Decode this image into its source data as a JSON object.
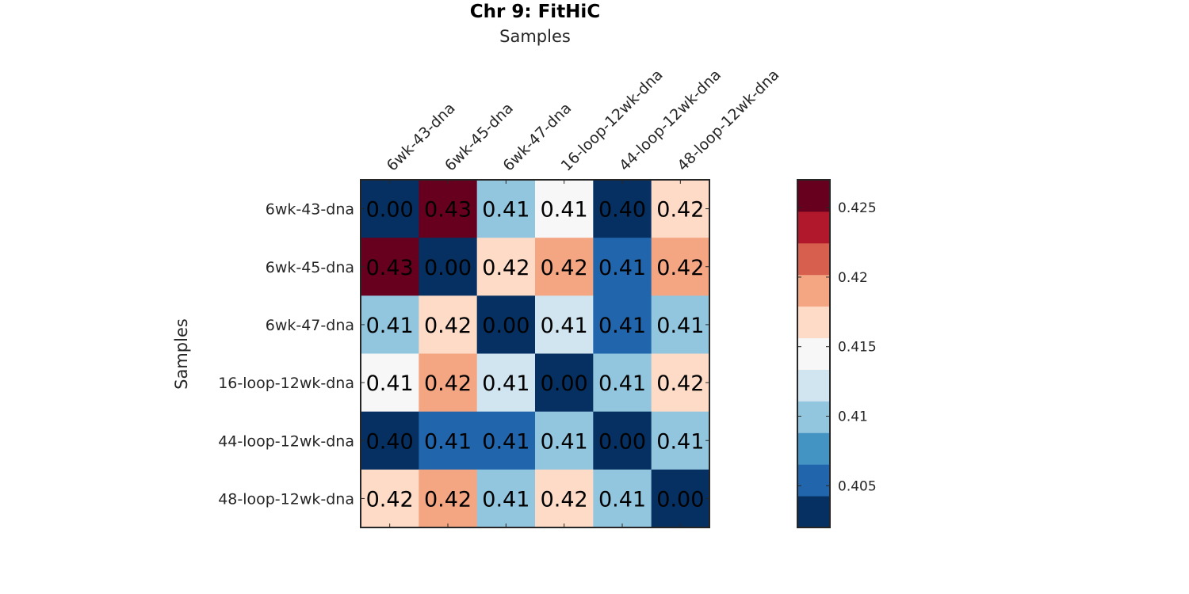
{
  "chart_data": {
    "type": "heatmap",
    "title": "Chr 9: FitHiC",
    "xlabel": "Samples",
    "ylabel": "Samples",
    "x_categories": [
      "6wk-43-dna",
      "6wk-45-dna",
      "6wk-47-dna",
      "16-loop-12wk-dna",
      "44-loop-12wk-dna",
      "48-loop-12wk-dna"
    ],
    "y_categories": [
      "6wk-43-dna",
      "6wk-45-dna",
      "6wk-47-dna",
      "16-loop-12wk-dna",
      "44-loop-12wk-dna",
      "48-loop-12wk-dna"
    ],
    "values": [
      [
        0.0,
        0.427,
        0.41,
        0.415,
        0.403,
        0.417
      ],
      [
        0.427,
        0.0,
        0.417,
        0.419,
        0.406,
        0.419
      ],
      [
        0.41,
        0.417,
        0.0,
        0.412,
        0.406,
        0.41
      ],
      [
        0.415,
        0.419,
        0.412,
        0.0,
        0.41,
        0.417
      ],
      [
        0.403,
        0.406,
        0.406,
        0.41,
        0.0,
        0.41
      ],
      [
        0.417,
        0.419,
        0.41,
        0.417,
        0.41,
        0.0
      ]
    ],
    "labels": [
      [
        "0.00",
        "0.43",
        "0.41",
        "0.41",
        "0.40",
        "0.42"
      ],
      [
        "0.43",
        "0.00",
        "0.42",
        "0.42",
        "0.41",
        "0.42"
      ],
      [
        "0.41",
        "0.42",
        "0.00",
        "0.41",
        "0.41",
        "0.41"
      ],
      [
        "0.41",
        "0.42",
        "0.41",
        "0.00",
        "0.41",
        "0.42"
      ],
      [
        "0.40",
        "0.41",
        "0.41",
        "0.41",
        "0.00",
        "0.41"
      ],
      [
        "0.42",
        "0.42",
        "0.41",
        "0.42",
        "0.41",
        "0.00"
      ]
    ],
    "colorbar": {
      "range": [
        0.402,
        0.427
      ],
      "ticks": [
        0.405,
        0.41,
        0.415,
        0.42,
        0.425
      ],
      "tick_labels": [
        "0.405",
        "0.41",
        "0.415",
        "0.42",
        "0.425"
      ],
      "colors": [
        "#053061",
        "#2166ac",
        "#4393c3",
        "#92c5de",
        "#d1e5f0",
        "#f7f7f7",
        "#fddbc7",
        "#f4a582",
        "#d6604d",
        "#b2182b",
        "#67001f"
      ]
    },
    "grid": false,
    "legend": "colorbar-right"
  }
}
